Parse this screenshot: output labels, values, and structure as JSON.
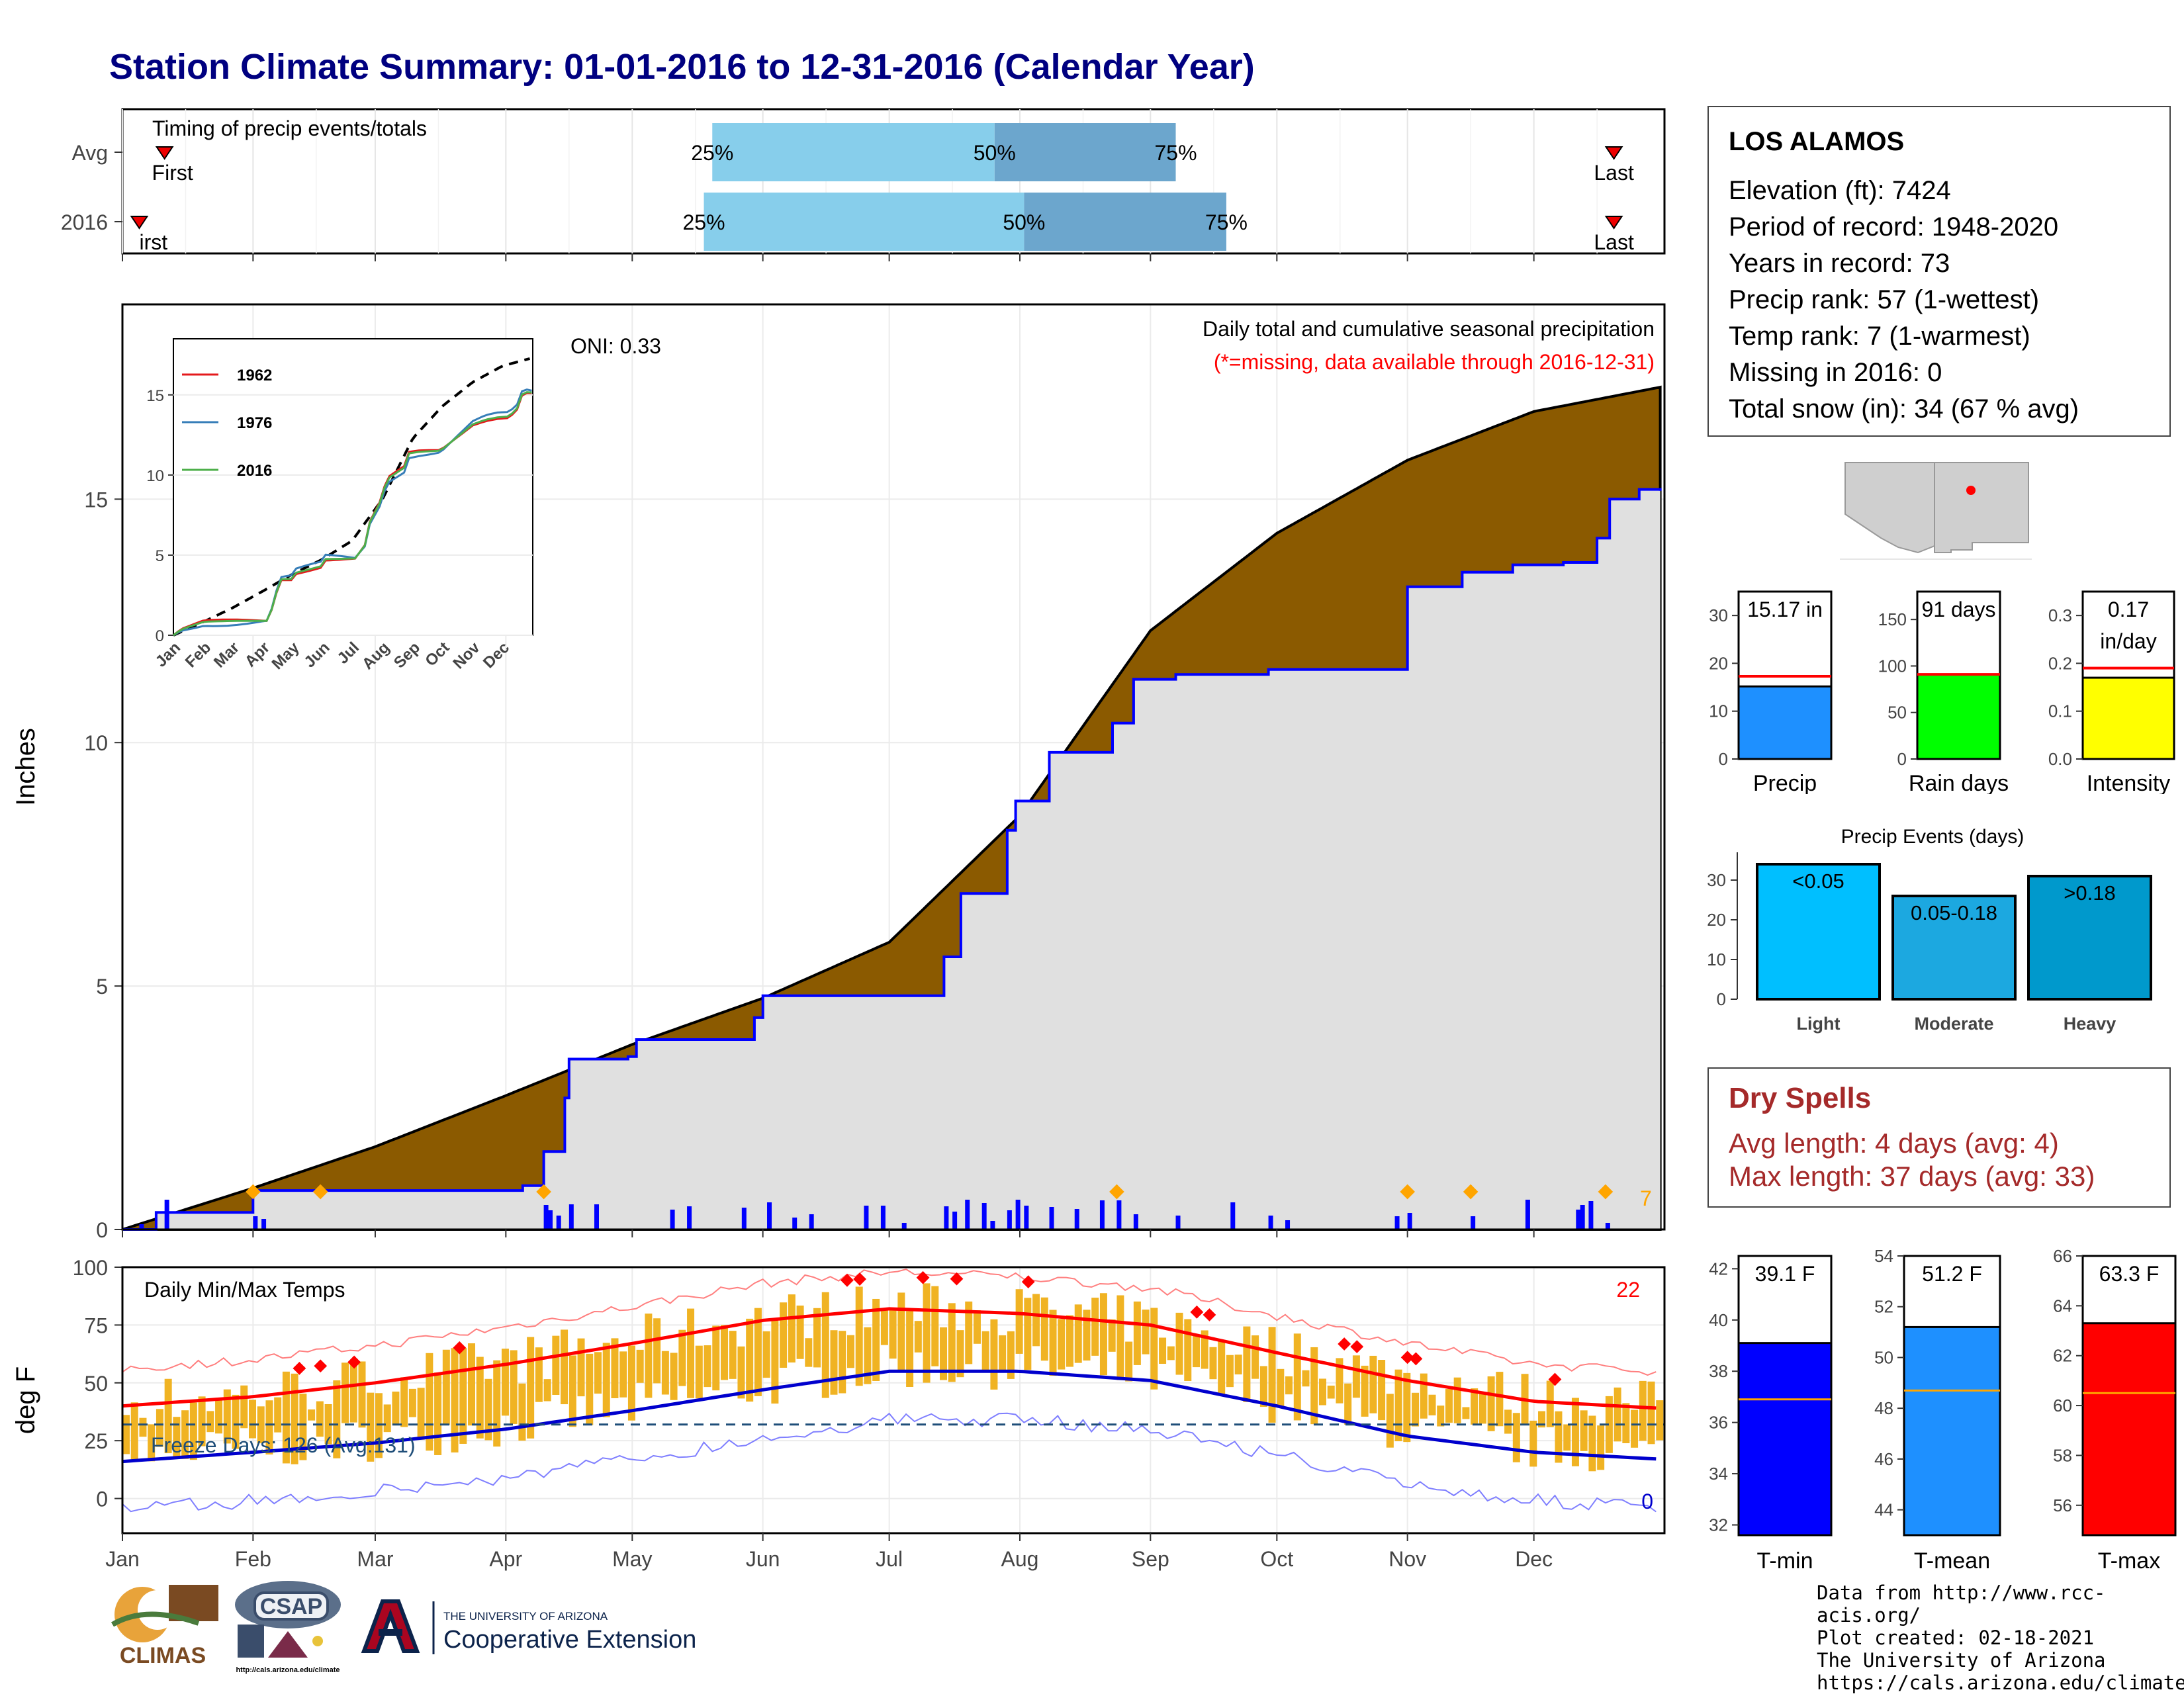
{
  "title": "Station Climate Summary: 01-01-2016 to 12-31-2016 (Calendar Year)",
  "station": {
    "name": "LOS ALAMOS",
    "lines": [
      "Elevation (ft): 7424",
      "Period of record: 1948-2020",
      "Years in record: 73",
      "Precip rank: 57 (1-wettest)",
      "Temp rank: 7 (1-warmest)",
      "Missing in 2016: 0",
      "Total snow (in): 34 (67 % avg)"
    ]
  },
  "dry_spells": {
    "heading": "Dry Spells",
    "avg": "Avg length: 4 days (avg: 4)",
    "max": "Max length: 37 days (avg: 33)"
  },
  "months": [
    "Jan",
    "Feb",
    "Mar",
    "Apr",
    "May",
    "Jun",
    "Jul",
    "Aug",
    "Sep",
    "Oct",
    "Nov",
    "Dec"
  ],
  "chart_data": [
    {
      "type": "bar",
      "title": "Timing of precip events/totals",
      "rows": [
        {
          "label": "Avg",
          "first_label": "First",
          "last_label": "Last",
          "first_day": 10,
          "p25_day": 140,
          "p50_day": 207,
          "p75_day": 250,
          "last_day": 354,
          "p25": "25%",
          "p50": "50%",
          "p75": "75%"
        },
        {
          "label": "2016",
          "first_label": "irst",
          "last_label": "Last",
          "first_day": 4,
          "p25_day": 138,
          "p50_day": 214,
          "p75_day": 262,
          "last_day": 354,
          "p25": "25%",
          "p50": "50%",
          "p75": "75%"
        }
      ]
    },
    {
      "type": "area",
      "title": "Daily total and cumulative seasonal precipitation",
      "subtitle": "(*=missing, data available through 2016-12-31)",
      "oni": "ONI: 0.33",
      "ylabel": "Inches",
      "ylim": [
        0,
        19
      ],
      "yticks": [
        0,
        5,
        10,
        15
      ],
      "corner_label": "7",
      "avg_cumulative": {
        "day": [
          0,
          31,
          60,
          91,
          121,
          152,
          182,
          213,
          244,
          274,
          305,
          335,
          365
        ],
        "value": [
          0,
          0.85,
          1.7,
          2.75,
          3.8,
          4.75,
          5.9,
          8.5,
          12.3,
          14.3,
          15.8,
          16.8,
          17.3
        ]
      },
      "obs_cumulative": {
        "day": [
          0,
          8,
          31,
          95,
          100,
          105,
          106,
          120,
          122,
          150,
          152,
          185,
          195,
          199,
          210,
          212,
          220,
          235,
          240,
          250,
          272,
          305,
          318,
          330,
          342,
          350,
          353,
          360,
          365
        ],
        "value": [
          0,
          0.35,
          0.8,
          0.9,
          1.6,
          2.7,
          3.5,
          3.55,
          3.9,
          4.35,
          4.8,
          4.8,
          5.6,
          6.9,
          8.2,
          8.8,
          9.8,
          10.4,
          11.3,
          11.4,
          11.5,
          13.2,
          13.5,
          13.65,
          13.7,
          14.2,
          15.0,
          15.2,
          15.17
        ]
      },
      "daily_precip_days": [
        4,
        10,
        31,
        33,
        100,
        101,
        103,
        106,
        112,
        130,
        134,
        147,
        153,
        159,
        163,
        176,
        180,
        185,
        195,
        197,
        200,
        204,
        206,
        210,
        212,
        214,
        220,
        226,
        232,
        236,
        240,
        250,
        263,
        272,
        276,
        302,
        305,
        320,
        333,
        345,
        346,
        348,
        352
      ]
    },
    {
      "type": "line",
      "title": "Daily Min/Max Temps",
      "ylabel": "deg F",
      "ylim": [
        -15,
        100
      ],
      "yticks": [
        0,
        25,
        50,
        75,
        100
      ],
      "freeze_label": "Freeze Days: 126 (Avg:131)",
      "record_high_count": "22",
      "record_low_count": "0",
      "freezing_line": 32,
      "avg_max": {
        "day": [
          0,
          31,
          60,
          91,
          121,
          152,
          182,
          213,
          244,
          274,
          305,
          335,
          365
        ],
        "value": [
          40,
          44,
          50,
          58,
          67,
          77,
          82,
          80,
          75,
          63,
          51,
          42,
          39
        ]
      },
      "avg_min": {
        "day": [
          0,
          31,
          60,
          91,
          121,
          152,
          182,
          213,
          244,
          274,
          305,
          335,
          365
        ],
        "value": [
          16,
          20,
          24,
          30,
          38,
          47,
          55,
          55,
          51,
          40,
          27,
          20,
          17
        ]
      }
    },
    {
      "type": "bar",
      "categories": [
        "Precip",
        "Rain days",
        "Intensity"
      ],
      "values": [
        15.17,
        91,
        0.17
      ],
      "labels": [
        "15.17 in",
        "91 days",
        "0.17\nin/day"
      ],
      "averages": [
        17.3,
        91,
        0.19
      ],
      "ylims": [
        [
          0,
          35
        ],
        [
          0,
          180
        ],
        [
          0,
          0.35
        ]
      ],
      "yticks": [
        [
          0,
          10,
          20,
          30
        ],
        [
          0,
          50,
          100,
          150
        ],
        [
          0.0,
          0.1,
          0.2,
          0.3
        ]
      ],
      "colors": [
        "#1e90ff",
        "#00ff00",
        "#ffff00"
      ]
    },
    {
      "type": "bar",
      "title": "Precip Events (days)",
      "categories": [
        "Light",
        "Moderate",
        "Heavy"
      ],
      "values": [
        34,
        26,
        31
      ],
      "labels": [
        "<0.05",
        "0.05-0.18",
        ">0.18"
      ],
      "ylim": [
        0,
        35
      ],
      "yticks": [
        0,
        10,
        20,
        30
      ],
      "colors": [
        "#00bfff",
        "#1ca8e0",
        "#0099cc"
      ]
    },
    {
      "type": "bar",
      "categories": [
        "T-min",
        "T-mean",
        "T-max"
      ],
      "values": [
        39.1,
        51.2,
        63.3
      ],
      "labels": [
        "39.1 F",
        "51.2 F",
        "63.3 F"
      ],
      "averages": [
        36.9,
        48.7,
        60.5
      ],
      "ylims": [
        [
          31.6,
          42.5
        ],
        [
          43,
          54
        ],
        [
          54.8,
          66
        ]
      ],
      "yticks": [
        [
          32,
          34,
          36,
          38,
          40,
          42
        ],
        [
          44,
          46,
          48,
          50,
          52,
          54
        ],
        [
          56,
          58,
          60,
          62,
          64,
          66
        ]
      ],
      "colors": [
        "#0000ff",
        "#1e90ff",
        "#ff0000"
      ]
    }
  ],
  "inset": {
    "series": [
      {
        "name": "1962",
        "color": "#e41a1c"
      },
      {
        "name": "1976",
        "color": "#377eb8"
      },
      {
        "name": "2016",
        "color": "#4daf4a"
      }
    ],
    "yticks": [
      0,
      5,
      10,
      15
    ],
    "months": [
      "Jan",
      "Feb",
      "Mar",
      "Apr",
      "May",
      "Jun",
      "Jul",
      "Aug",
      "Sep",
      "Oct",
      "Nov",
      "Dec"
    ]
  },
  "footer": {
    "lines": [
      "Data from http://www.rcc-acis.org/",
      "Plot created: 02-18-2021",
      "The University of Arizona",
      "https://cals.arizona.edu/climate/"
    ]
  },
  "logos": {
    "climas": "CLIMAS",
    "csap": "CSAP",
    "csap_url": "http://cals.arizona.edu/climate",
    "ua_top": "THE UNIVERSITY OF ARIZONA",
    "ua_bottom": "Cooperative Extension"
  }
}
